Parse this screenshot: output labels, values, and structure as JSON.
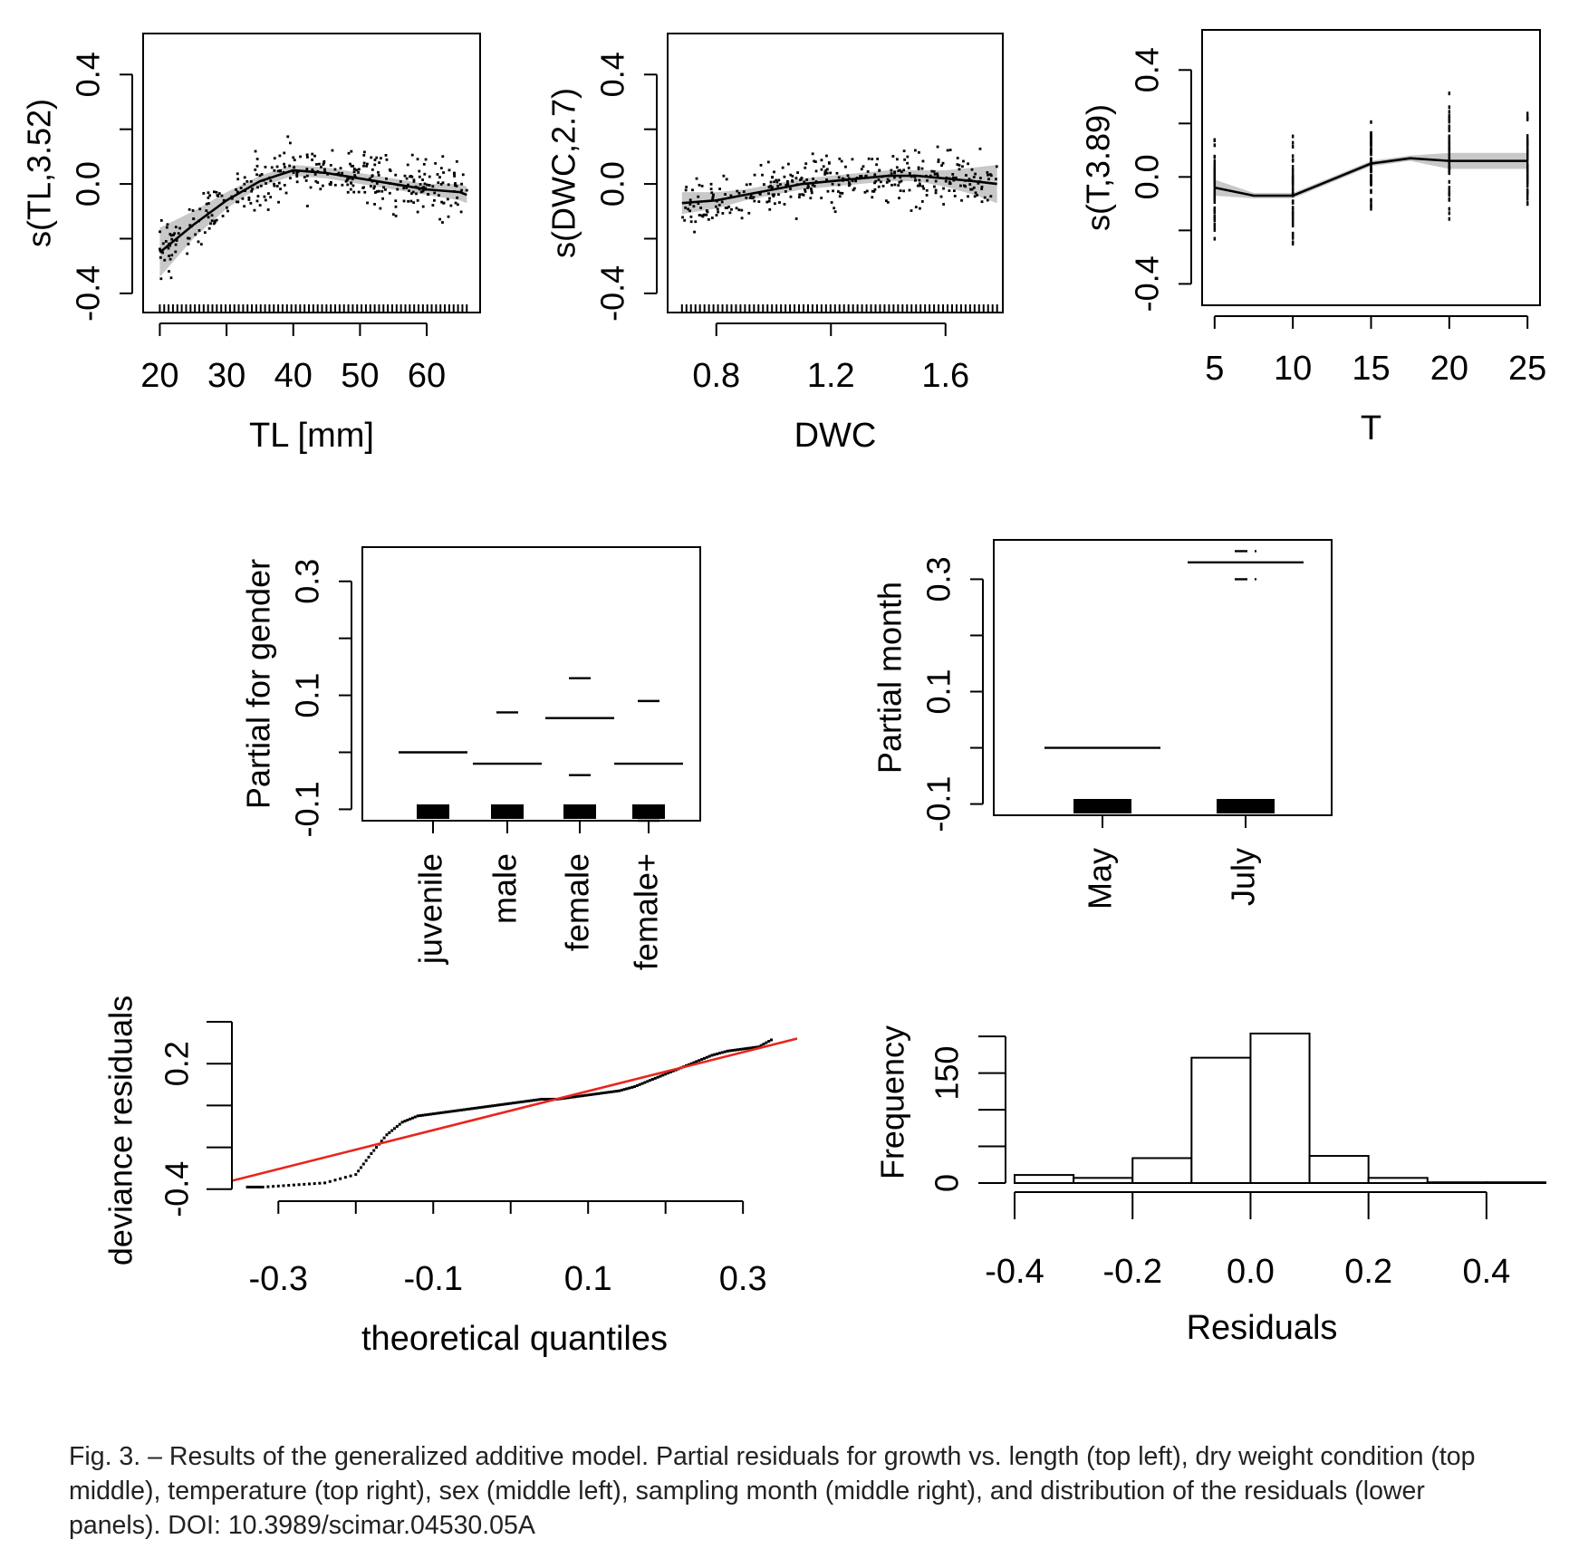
{
  "caption": "Fig. 3. – Results of the generalized additive model. Partial residuals for growth vs. length (top left), dry weight condition (top middle), temperature (top right), sex (middle left), sampling month (middle right), and distribution of the residuals (lower panels). DOI: 10.3989/scimar.04530.05A",
  "chart_data": [
    {
      "id": "tl",
      "type": "line",
      "xlabel": "TL [mm]",
      "ylabel": "s(TL,3.52)",
      "xticks": [
        20,
        30,
        40,
        50,
        60
      ],
      "yticks": [
        -0.4,
        0.0,
        0.4
      ],
      "xlim": [
        17.5,
        68
      ],
      "ylim": [
        -0.47,
        0.55
      ],
      "series": [
        {
          "x": [
            20,
            25,
            30,
            35,
            40,
            45,
            50,
            55,
            60,
            65,
            66
          ],
          "y": [
            -0.25,
            -0.15,
            -0.06,
            0.01,
            0.05,
            0.04,
            0.02,
            0.0,
            -0.02,
            -0.03,
            -0.04
          ]
        }
      ],
      "band": {
        "x": [
          20,
          25,
          30,
          35,
          40,
          45,
          50,
          55,
          60,
          65,
          66
        ],
        "lower": [
          -0.34,
          -0.2,
          -0.09,
          -0.01,
          0.03,
          0.02,
          0.0,
          -0.02,
          -0.04,
          -0.06,
          -0.07
        ],
        "upper": [
          -0.16,
          -0.1,
          -0.03,
          0.03,
          0.07,
          0.06,
          0.04,
          0.02,
          0.0,
          0.0,
          -0.01
        ]
      },
      "rug": true
    },
    {
      "id": "dwc",
      "type": "line",
      "xlabel": "DWC",
      "ylabel": "s(DWC,2.7)",
      "xticks": [
        0.8,
        1.2,
        1.6
      ],
      "yticks": [
        -0.4,
        0.0,
        0.4
      ],
      "xlim": [
        0.63,
        1.8
      ],
      "ylim": [
        -0.47,
        0.55
      ],
      "series": [
        {
          "x": [
            0.68,
            0.8,
            0.9,
            1.0,
            1.1,
            1.2,
            1.3,
            1.4,
            1.5,
            1.6,
            1.7,
            1.78
          ],
          "y": [
            -0.07,
            -0.06,
            -0.04,
            -0.02,
            0.0,
            0.01,
            0.02,
            0.03,
            0.03,
            0.02,
            0.01,
            0.0
          ]
        }
      ],
      "band": {
        "x": [
          0.68,
          0.8,
          0.9,
          1.0,
          1.1,
          1.2,
          1.3,
          1.4,
          1.5,
          1.6,
          1.7,
          1.78
        ],
        "lower": [
          -0.11,
          -0.09,
          -0.06,
          -0.04,
          -0.02,
          -0.01,
          0.0,
          0.01,
          0.01,
          -0.01,
          -0.04,
          -0.07
        ],
        "upper": [
          -0.03,
          -0.03,
          -0.02,
          0.0,
          0.02,
          0.03,
          0.04,
          0.05,
          0.05,
          0.05,
          0.06,
          0.07
        ]
      },
      "rug": true
    },
    {
      "id": "temp",
      "type": "line",
      "xlabel": "T",
      "ylabel": "s(T,3.89)",
      "xticks": [
        5,
        10,
        15,
        20,
        25
      ],
      "yticks": [
        -0.4,
        0.0,
        0.4
      ],
      "xlim": [
        4.2,
        25.8
      ],
      "ylim": [
        -0.48,
        0.55
      ],
      "series": [
        {
          "x": [
            5,
            7.5,
            10,
            12.5,
            15,
            17.5,
            20,
            22.5,
            25
          ],
          "y": [
            -0.04,
            -0.07,
            -0.07,
            -0.01,
            0.05,
            0.07,
            0.06,
            0.06,
            0.06
          ]
        }
      ],
      "band": {
        "x": [
          5,
          7.5,
          10,
          12.5,
          15,
          17.5,
          20,
          22.5,
          25
        ],
        "lower": [
          -0.07,
          -0.08,
          -0.08,
          -0.02,
          0.04,
          0.06,
          0.03,
          0.03,
          0.03
        ],
        "upper": [
          -0.01,
          -0.06,
          -0.06,
          0.0,
          0.06,
          0.08,
          0.09,
          0.09,
          0.09
        ]
      },
      "columns": [
        5,
        10,
        15,
        20,
        25
      ]
    },
    {
      "id": "gender",
      "type": "bar",
      "ylabel": "Partial for gender",
      "categories": [
        "juvenile",
        "male",
        "female",
        "female+"
      ],
      "yticks": [
        -0.1,
        0.1,
        0.3
      ],
      "ylim": [
        -0.12,
        0.36
      ],
      "values": [
        0.0,
        -0.02,
        0.06,
        -0.02
      ],
      "upper": [
        0.0,
        0.07,
        0.13,
        0.09
      ],
      "lower": [
        0.0,
        -0.11,
        -0.04,
        -0.12
      ]
    },
    {
      "id": "month",
      "type": "bar",
      "ylabel": "Partial month",
      "categories": [
        "May",
        "July"
      ],
      "yticks": [
        -0.1,
        0.1,
        0.3
      ],
      "ylim": [
        -0.12,
        0.37
      ],
      "values": [
        0.0,
        0.33
      ],
      "upper": [
        0.0,
        0.35
      ],
      "lower": [
        0.0,
        0.3
      ]
    },
    {
      "id": "qq",
      "type": "scatter",
      "xlabel": "theoretical quantiles",
      "ylabel": "deviance residuals",
      "xticks": [
        -0.3,
        -0.1,
        0.1,
        0.3
      ],
      "yticks": [
        -0.4,
        0.2
      ],
      "xlim": [
        -0.36,
        0.37
      ],
      "ylim": [
        -0.44,
        0.4
      ],
      "points": [
        [
          -0.34,
          -0.39
        ],
        [
          -0.32,
          -0.39
        ],
        [
          -0.28,
          -0.38
        ],
        [
          -0.24,
          -0.37
        ],
        [
          -0.2,
          -0.33
        ],
        [
          -0.18,
          -0.23
        ],
        [
          -0.16,
          -0.14
        ],
        [
          -0.14,
          -0.08
        ],
        [
          -0.12,
          -0.05
        ],
        [
          -0.1,
          -0.04
        ],
        [
          -0.08,
          -0.03
        ],
        [
          -0.06,
          -0.02
        ],
        [
          -0.04,
          -0.01
        ],
        [
          -0.02,
          0.0
        ],
        [
          0.0,
          0.01
        ],
        [
          0.02,
          0.02
        ],
        [
          0.04,
          0.03
        ],
        [
          0.06,
          0.03
        ],
        [
          0.08,
          0.04
        ],
        [
          0.1,
          0.05
        ],
        [
          0.12,
          0.06
        ],
        [
          0.14,
          0.07
        ],
        [
          0.16,
          0.09
        ],
        [
          0.18,
          0.12
        ],
        [
          0.2,
          0.15
        ],
        [
          0.22,
          0.18
        ],
        [
          0.24,
          0.21
        ],
        [
          0.26,
          0.24
        ],
        [
          0.28,
          0.26
        ],
        [
          0.3,
          0.27
        ],
        [
          0.32,
          0.28
        ],
        [
          0.34,
          0.32
        ]
      ],
      "reference_line": {
        "x": [
          -0.36,
          0.37
        ],
        "y": [
          -0.36,
          0.32
        ],
        "color": "#e8251f"
      }
    },
    {
      "id": "hist",
      "type": "bar",
      "xlabel": "Residuals",
      "ylabel": "Frequency",
      "xticks": [
        -0.4,
        -0.2,
        0.0,
        0.2,
        0.4
      ],
      "yticks": [
        0,
        150
      ],
      "xlim": [
        -0.4,
        0.5
      ],
      "bin_edges": [
        -0.4,
        -0.3,
        -0.2,
        -0.1,
        0.0,
        0.1,
        0.2,
        0.3,
        0.4,
        0.5
      ],
      "counts": [
        11,
        7,
        34,
        171,
        204,
        37,
        7,
        1,
        1
      ]
    }
  ]
}
